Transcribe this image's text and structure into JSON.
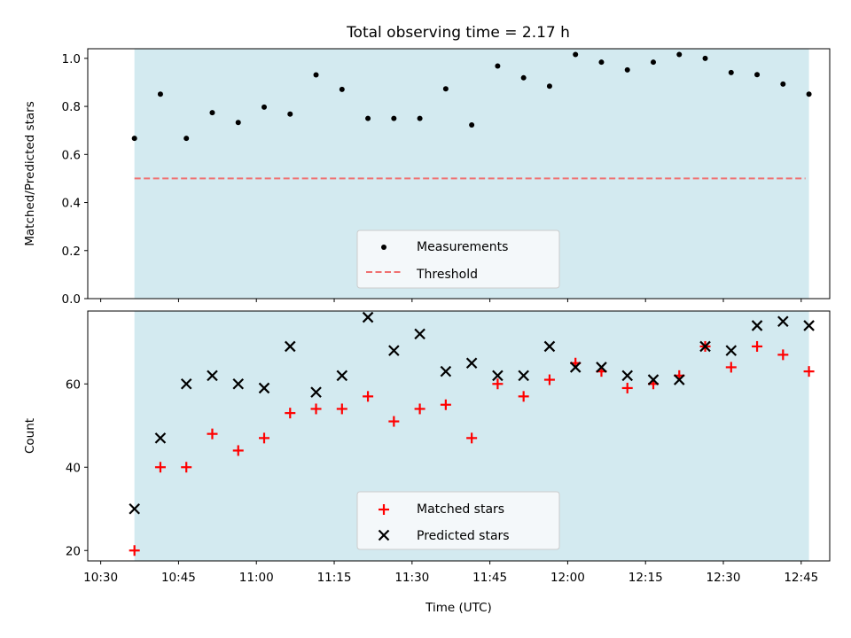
{
  "chart_data": {
    "title": "Total observing time = 2.17 h",
    "xlabel": "Time (UTC)",
    "x_tick_labels": [
      "10:30",
      "10:45",
      "11:00",
      "11:15",
      "11:30",
      "11:45",
      "12:00",
      "12:15",
      "12:30",
      "12:45"
    ],
    "x_tick_values_min": [
      630,
      645,
      660,
      675,
      690,
      705,
      720,
      735,
      750,
      765
    ],
    "xlim_min": [
      627.5,
      770.5
    ],
    "observing_window_min": [
      636.5,
      766.5
    ],
    "span_color": "#d3eaf0",
    "x": [
      "10:36",
      "10:41",
      "10:46",
      "10:51",
      "10:56",
      "11:01",
      "11:06",
      "11:11",
      "11:16",
      "11:21",
      "11:26",
      "11:31",
      "11:36",
      "11:41",
      "11:46",
      "11:51",
      "11:56",
      "12:01",
      "12:06",
      "12:11",
      "12:16",
      "12:21",
      "12:26",
      "12:31",
      "12:36",
      "12:41",
      "12:46"
    ],
    "x_min": [
      636.5,
      641.5,
      646.5,
      651.5,
      656.5,
      661.5,
      666.5,
      671.5,
      676.5,
      681.5,
      686.5,
      691.5,
      696.5,
      701.5,
      706.5,
      711.5,
      716.5,
      721.5,
      726.5,
      731.5,
      736.5,
      741.5,
      746.5,
      751.5,
      756.5,
      761.5,
      766.5
    ],
    "panels": [
      {
        "type": "scatter",
        "ylabel": "Matched/Predicted stars",
        "ylim": [
          0.0,
          1.04
        ],
        "y_ticks": [
          0.0,
          0.2,
          0.4,
          0.6,
          0.8,
          1.0
        ],
        "y_tick_labels": [
          "0.0",
          "0.2",
          "0.4",
          "0.6",
          "0.8",
          "1.0"
        ],
        "series": [
          {
            "name": "Measurements",
            "marker": "dot",
            "color": "#000000",
            "values": [
              0.667,
              0.851,
              0.667,
              0.774,
              0.733,
              0.797,
              0.768,
              0.931,
              0.871,
              0.75,
              0.75,
              0.75,
              0.873,
              0.723,
              0.968,
              0.919,
              0.884,
              1.016,
              0.984,
              0.952,
              0.984,
              1.016,
              1.0,
              0.941,
              0.932,
              0.893,
              0.851
            ]
          }
        ],
        "threshold": {
          "name": "Threshold",
          "value": 0.5,
          "color": "#f07070"
        },
        "legend_position": "lower center"
      },
      {
        "type": "scatter",
        "ylabel": "Count",
        "ylim": [
          17.5,
          77.5
        ],
        "y_ticks": [
          20,
          40,
          60
        ],
        "y_tick_labels": [
          "20",
          "40",
          "60"
        ],
        "series": [
          {
            "name": "Matched stars",
            "marker": "plus",
            "color": "#ff0000",
            "values": [
              20,
              40,
              40,
              48,
              44,
              47,
              53,
              54,
              54,
              57,
              51,
              54,
              55,
              47,
              60,
              57,
              61,
              65,
              63,
              59,
              60,
              62,
              69,
              64,
              69,
              67,
              63
            ]
          },
          {
            "name": "Predicted stars",
            "marker": "x",
            "color": "#000000",
            "values": [
              30,
              47,
              60,
              62,
              60,
              59,
              69,
              58,
              62,
              76,
              68,
              72,
              63,
              65,
              62,
              62,
              69,
              64,
              64,
              62,
              61,
              61,
              69,
              68,
              74,
              75,
              74
            ]
          }
        ],
        "legend_position": "lower center"
      }
    ]
  }
}
